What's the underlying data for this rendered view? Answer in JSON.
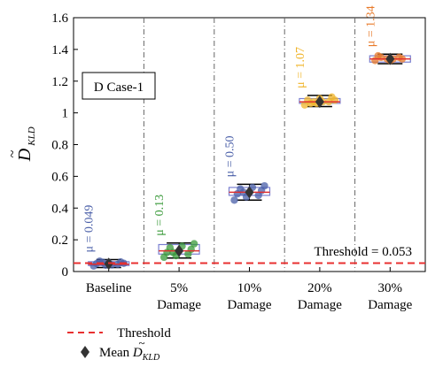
{
  "chart_data": {
    "type": "box",
    "title": "",
    "ylabel_main": "D",
    "ylabel_tilde": "~",
    "ylabel_sub": "KLD",
    "xlabel": "",
    "ylim": [
      0,
      1.6
    ],
    "yticks": [
      0,
      0.2,
      0.4,
      0.6,
      0.8,
      1,
      1.2,
      1.4,
      1.6
    ],
    "ytick_labels": [
      "0",
      "0.2",
      "0.4",
      "0.6",
      "0.8",
      "1",
      "1.2",
      "1.4",
      "1.6"
    ],
    "grid": "vertical dash-dot separators between categories",
    "case_label": "D Case-1",
    "categories": [
      {
        "line1": "Baseline",
        "line2": ""
      },
      {
        "line1": "5%",
        "line2": "Damage"
      },
      {
        "line1": "10%",
        "line2": "Damage"
      },
      {
        "line1": "20%",
        "line2": "Damage"
      },
      {
        "line1": "30%",
        "line2": "Damage"
      }
    ],
    "groups": [
      {
        "mean": 0.049,
        "mean_label": "μ = 0.049",
        "color": "#4a5fa8",
        "box": {
          "q1": 0.038,
          "median": 0.046,
          "q3": 0.062,
          "whisker_low": 0.025,
          "whisker_high": 0.075
        },
        "points": [
          0.035,
          0.04,
          0.045,
          0.05,
          0.055,
          0.06,
          0.065,
          0.042,
          0.052,
          0.058
        ]
      },
      {
        "mean": 0.13,
        "mean_label": "μ = 0.13",
        "color": "#3a9a3a",
        "box": {
          "q1": 0.11,
          "median": 0.13,
          "q3": 0.17,
          "whisker_low": 0.085,
          "whisker_high": 0.18
        },
        "points": [
          0.09,
          0.1,
          0.11,
          0.12,
          0.13,
          0.14,
          0.15,
          0.16,
          0.175,
          0.12
        ]
      },
      {
        "mean": 0.5,
        "mean_label": "μ = 0.50",
        "color": "#4a5fa8",
        "box": {
          "q1": 0.48,
          "median": 0.5,
          "q3": 0.53,
          "whisker_low": 0.45,
          "whisker_high": 0.55
        },
        "points": [
          0.45,
          0.47,
          0.48,
          0.49,
          0.5,
          0.51,
          0.52,
          0.53,
          0.54,
          0.5
        ]
      },
      {
        "mean": 1.07,
        "mean_label": "μ = 1.07",
        "color": "#f0b429",
        "box": {
          "q1": 1.06,
          "median": 1.07,
          "q3": 1.09,
          "whisker_low": 1.04,
          "whisker_high": 1.11
        },
        "points": [
          1.05,
          1.06,
          1.07,
          1.08,
          1.09,
          1.1,
          1.06,
          1.07,
          1.08,
          1.07
        ]
      },
      {
        "mean": 1.34,
        "mean_label": "μ = 1.34",
        "color": "#e87a2a",
        "box": {
          "q1": 1.32,
          "median": 1.34,
          "q3": 1.36,
          "whisker_low": 1.31,
          "whisker_high": 1.37
        },
        "points": [
          1.33,
          1.34,
          1.35,
          1.36,
          1.33,
          1.34,
          1.35,
          1.34
        ]
      }
    ],
    "box_edge_color": "#7a7fd0",
    "median_color": "#e03030",
    "threshold": {
      "value": 0.053,
      "label": "Threshold = 0.053",
      "color": "#e83030"
    },
    "legend": {
      "threshold_label": "Threshold",
      "mean_label_prefix": "Mean ",
      "mean_label_main": "D",
      "mean_label_tilde": "~",
      "mean_label_sub": "KLD"
    }
  }
}
